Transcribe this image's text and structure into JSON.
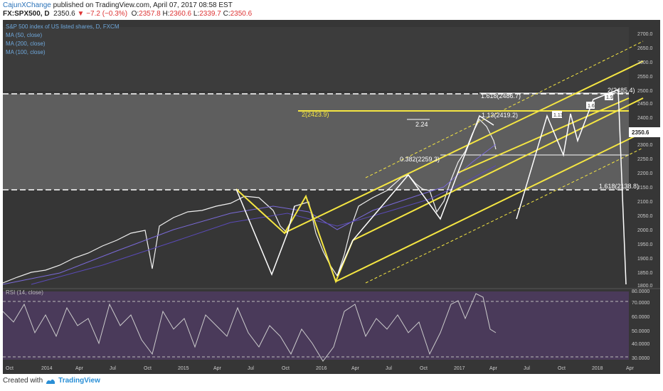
{
  "header": {
    "author": "CajunXChange",
    "published_text": "published on TradingView.com, April 07, 2017 08:58 EST",
    "symbol_line": "FX:SPX500, D",
    "last": "2350.6",
    "change": "−7.2 (−0.3%)",
    "open_label": "O:",
    "open": "2357.8",
    "high_label": "H:",
    "high": "2360.6",
    "low_label": "L:",
    "low": "2339.7",
    "close_label": "C:",
    "close": "2350.6"
  },
  "legend": {
    "title": "S&P 500 index of US listed shares, D, FXCM",
    "ma1": "MA (50, close)",
    "ma2": "MA (200, close)",
    "ma3": "MA (100, close)"
  },
  "price_axis": [
    "2700.0",
    "2650.0",
    "2600.0",
    "2550.0",
    "2500.0",
    "2450.0",
    "2400.0",
    "2350.0",
    "2300.0",
    "2250.0",
    "2200.0",
    "2150.0",
    "2100.0",
    "2050.0",
    "2000.0",
    "1950.0",
    "1900.0",
    "1850.0",
    "1800.0"
  ],
  "current_price": "2350.6",
  "annotations": {
    "fib_1618_top": "1.618(2486.7)",
    "fib_2_right": "2(2485.4)",
    "fib_2_left": "2(2423.9)",
    "fib_113": "1.13(2419.2)",
    "label_224": "2.24",
    "fib_0382": "0.382(2259.3)",
    "fib_1618_bottom": "1.618(2138.8)",
    "box1": "1.13",
    "box2": "1.6",
    "box3": "1.9"
  },
  "rsi": {
    "title": "RSI (14, close)",
    "axis": [
      "80.0000",
      "70.0000",
      "60.0000",
      "50.0000",
      "40.0000",
      "30.0000"
    ]
  },
  "time_axis": [
    "Oct",
    "2014",
    "Apr",
    "Jul",
    "Oct",
    "2015",
    "Apr",
    "Jul",
    "Oct",
    "2016",
    "Apr",
    "Jul",
    "Oct",
    "2017",
    "Apr",
    "Jul",
    "Oct",
    "2018",
    "Apr"
  ],
  "footer": {
    "created_with": "Created with",
    "brand": "TradingView"
  },
  "colors": {
    "background": "#363636",
    "channel": "#f5e642",
    "projection": "#e8e8e8",
    "ma": "#6a5acd",
    "rsi_fill": "#4a3a5a"
  }
}
